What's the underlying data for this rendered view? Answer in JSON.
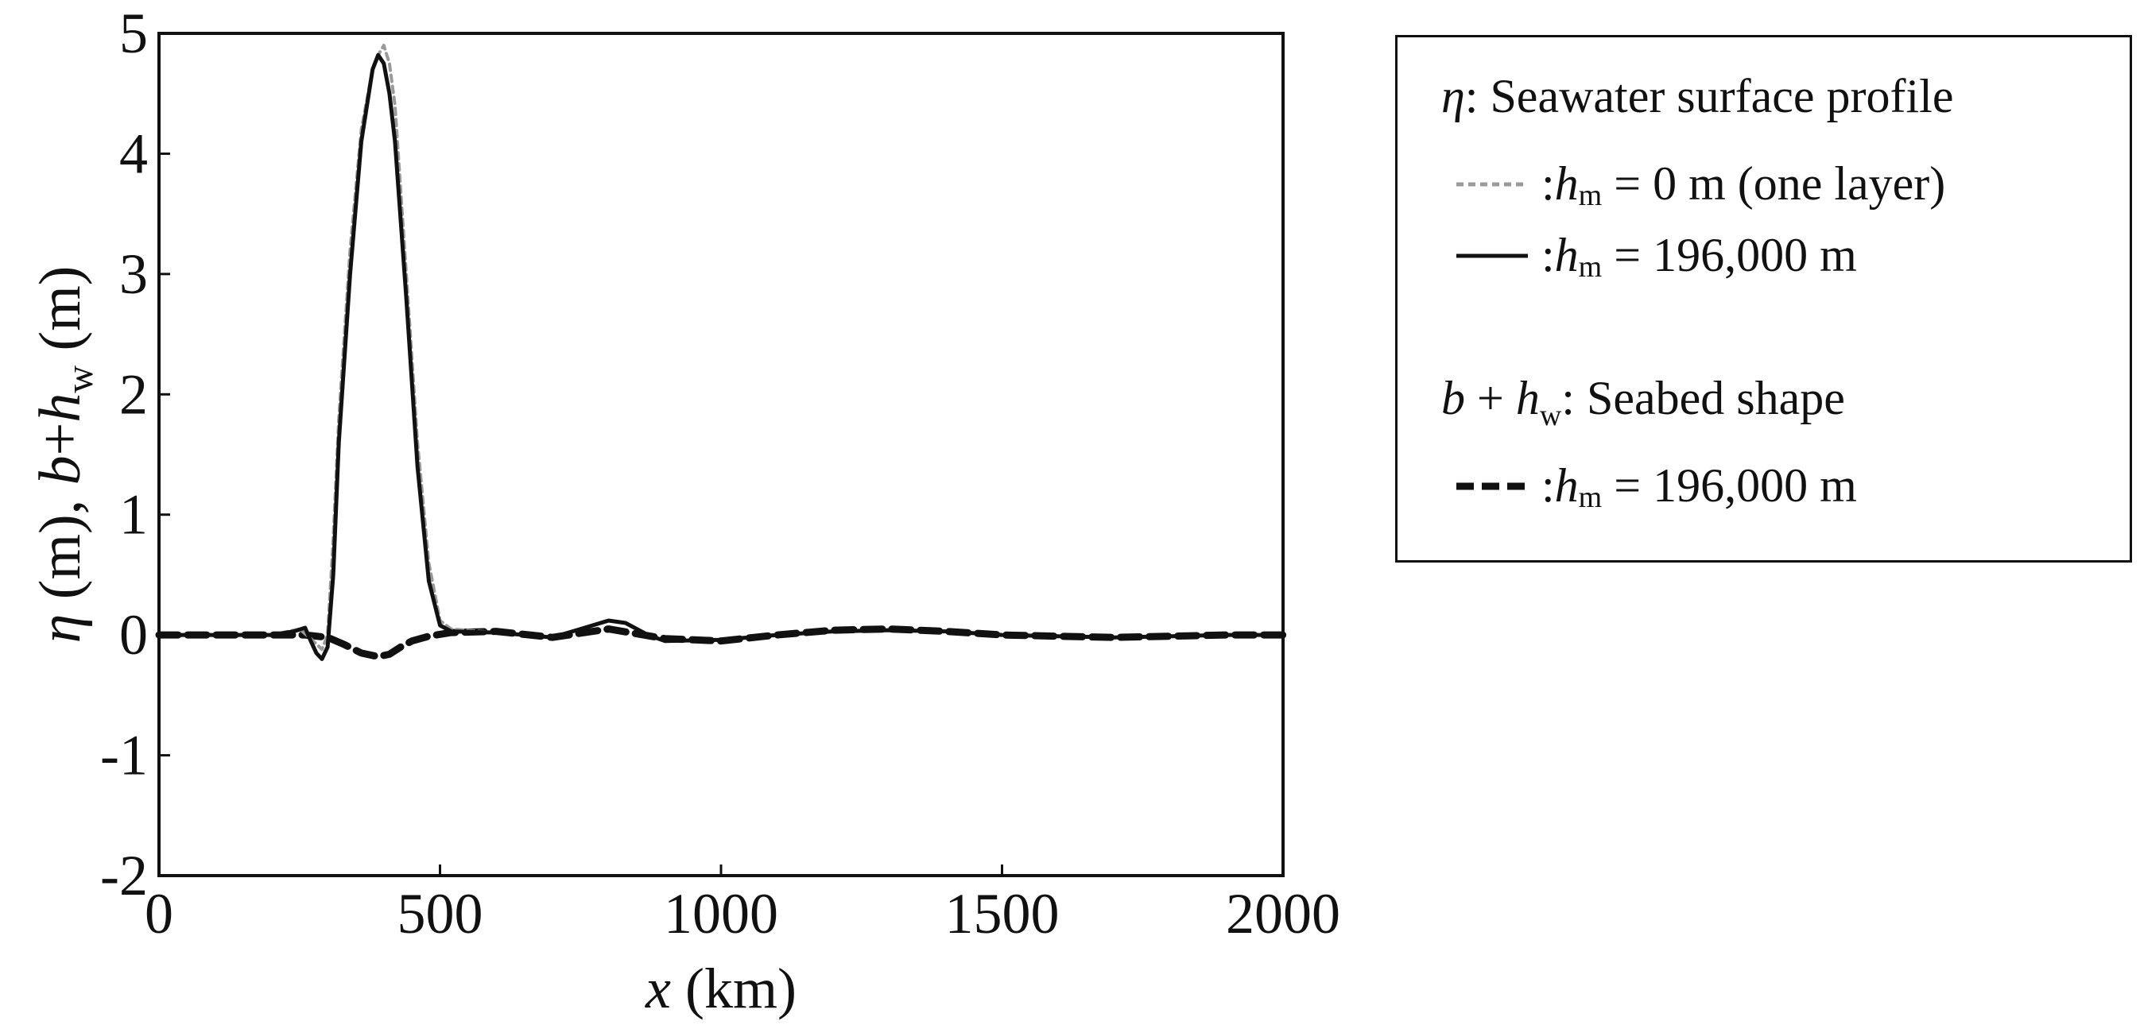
{
  "chart_data": {
    "type": "line",
    "xlabel": "x (km)",
    "ylabel": "η (m), b+h_w (m)",
    "xlim": [
      0,
      2000
    ],
    "ylim": [
      -2,
      5
    ],
    "x_ticks": [
      "0",
      "500",
      "1000",
      "1500",
      "2000"
    ],
    "y_ticks": [
      "-2",
      "-1",
      "0",
      "1",
      "2",
      "3",
      "4",
      "5"
    ],
    "grid": false,
    "legend_position": "right, outside plot",
    "series": [
      {
        "name": "η: h_m = 0 m (one layer)",
        "style": "thin gray dotted",
        "color": "#9a9a9a",
        "x": [
          0,
          100,
          200,
          250,
          270,
          290,
          300,
          310,
          320,
          340,
          360,
          380,
          390,
          400,
          410,
          420,
          440,
          460,
          480,
          500,
          520,
          600,
          700,
          750,
          800,
          830,
          870,
          900,
          1000,
          1100,
          1200,
          1300,
          1400,
          1500,
          1600,
          1700,
          1800,
          1900,
          2000
        ],
        "y": [
          0,
          0,
          0,
          0.05,
          -0.03,
          -0.12,
          0.0,
          0.8,
          1.8,
          3.2,
          4.2,
          4.7,
          4.82,
          4.9,
          4.75,
          4.4,
          3.0,
          1.6,
          0.6,
          0.12,
          0.05,
          0.02,
          -0.02,
          0.05,
          0.12,
          0.1,
          0.0,
          -0.05,
          -0.04,
          0.0,
          0.03,
          0.04,
          0.03,
          0.0,
          -0.01,
          -0.02,
          -0.01,
          0.0,
          0.0
        ]
      },
      {
        "name": "η: h_m = 196,000 m",
        "style": "solid black",
        "color": "#111111",
        "x": [
          0,
          100,
          200,
          240,
          260,
          270,
          280,
          290,
          300,
          310,
          320,
          340,
          360,
          380,
          390,
          400,
          410,
          420,
          440,
          460,
          480,
          500,
          520,
          600,
          700,
          750,
          800,
          830,
          870,
          900,
          1000,
          1100,
          1200,
          1300,
          1400,
          1500,
          1600,
          1700,
          1800,
          1900,
          2000
        ],
        "y": [
          0,
          0,
          0,
          0.03,
          0.06,
          -0.05,
          -0.15,
          -0.2,
          -0.1,
          0.5,
          1.6,
          3.0,
          4.1,
          4.7,
          4.82,
          4.75,
          4.5,
          4.1,
          2.8,
          1.4,
          0.45,
          0.08,
          0.03,
          0.02,
          -0.02,
          0.05,
          0.12,
          0.1,
          0.0,
          -0.05,
          -0.04,
          0.0,
          0.03,
          0.04,
          0.03,
          0.0,
          -0.01,
          -0.02,
          -0.01,
          0.0,
          0.0
        ]
      },
      {
        "name": "b + h_w: h_m = 196,000 m",
        "style": "thick black dashed",
        "color": "#111111",
        "x": [
          0,
          100,
          200,
          260,
          300,
          330,
          360,
          390,
          410,
          430,
          450,
          480,
          520,
          600,
          700,
          800,
          900,
          1000,
          1100,
          1200,
          1300,
          1400,
          1500,
          1600,
          1700,
          1800,
          1900,
          2000
        ],
        "y": [
          0,
          0,
          0,
          0,
          -0.02,
          -0.08,
          -0.15,
          -0.18,
          -0.16,
          -0.1,
          -0.05,
          -0.01,
          0.02,
          0.03,
          -0.02,
          0.05,
          -0.03,
          -0.05,
          0.0,
          0.04,
          0.05,
          0.03,
          0.0,
          -0.01,
          -0.02,
          -0.01,
          0.0,
          0.0
        ]
      }
    ]
  },
  "legend": {
    "eta_heading": "Seawater surface profile",
    "eta_symbol": "η",
    "entry1_var": "h",
    "entry1_sub": "m",
    "entry1_value": " = 0 m (one layer)",
    "entry2_var": "h",
    "entry2_sub": "m",
    "entry2_value": " = 196,000 m",
    "seabed_heading": "Seabed shape",
    "seabed_b": "b",
    "seabed_plus": " + ",
    "seabed_h": "h",
    "seabed_sub": "w",
    "entry3_var": "h",
    "entry3_sub": "m",
    "entry3_value": " = 196,000 m"
  }
}
